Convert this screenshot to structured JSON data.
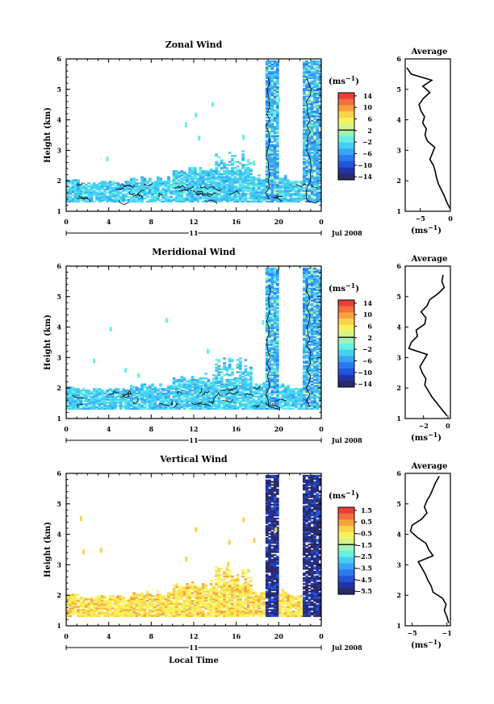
{
  "colors": {
    "ink": "#000000",
    "zm_scale": [
      "#2a2a66",
      "#2233aa",
      "#2255dd",
      "#2b79f0",
      "#3aa3f6",
      "#45d0f2",
      "#66f0e4",
      "#9ef3b2",
      "#d6f38a",
      "#f7f25c",
      "#fbd24a",
      "#f7a33c",
      "#f3703a",
      "#ea3f37"
    ],
    "vert_scale": [
      "#2a2a66",
      "#2233aa",
      "#2255dd",
      "#2b79f0",
      "#3aa3f6",
      "#45d0f2",
      "#66f0e4",
      "#9ef3b2",
      "#d6f38a",
      "#f7f25c",
      "#fbd24a",
      "#f7a33c",
      "#f3703a",
      "#ea3f37"
    ]
  },
  "chart_data": [
    {
      "type": "heatmap",
      "title": "Zonal Wind",
      "ylabel": "Height (km)",
      "xticks": [
        "0",
        "4",
        "8",
        "12",
        "16",
        "20",
        "0"
      ],
      "yticks": [
        "1",
        "2",
        "3",
        "4",
        "5",
        "6"
      ],
      "date_day": "11",
      "date_label": "Jul 2008",
      "colorbar": {
        "unit": "(ms",
        "exp": "−1",
        "ticks": [
          "14",
          "10",
          "6",
          "2",
          "−2",
          "−6",
          "−10",
          "−14"
        ],
        "range": [
          -16,
          16
        ]
      },
      "profile": {
        "title": "Average",
        "xticks": [
          "−5",
          "0"
        ],
        "xlim": [
          -7.5,
          0
        ],
        "unit": "(ms",
        "exp": "−1",
        "heights": [
          1.1,
          1.3,
          1.5,
          1.7,
          1.9,
          2.1,
          2.3,
          2.5,
          2.7,
          2.9,
          3.1,
          3.3,
          3.5,
          3.7,
          3.9,
          4.1,
          4.3,
          4.5,
          4.7,
          4.9,
          5.1,
          5.3,
          5.5,
          5.7
        ],
        "values": [
          -0.1,
          -0.6,
          -1.0,
          -1.5,
          -2.0,
          -2.3,
          -2.5,
          -2.8,
          -3.4,
          -3.0,
          -2.6,
          -3.8,
          -4.2,
          -4.0,
          -4.6,
          -4.3,
          -4.9,
          -5.2,
          -4.5,
          -3.4,
          -4.6,
          -3.1,
          -6.5,
          -7.2
        ]
      }
    },
    {
      "type": "heatmap",
      "title": "Meridional Wind",
      "ylabel": "Height (km)",
      "xticks": [
        "0",
        "4",
        "8",
        "12",
        "16",
        "20",
        "0"
      ],
      "yticks": [
        "1",
        "2",
        "3",
        "4",
        "5",
        "6"
      ],
      "date_day": "11",
      "date_label": "Jul 2008",
      "colorbar": {
        "unit": "(ms",
        "exp": "−1",
        "ticks": [
          "14",
          "10",
          "6",
          "2",
          "−2",
          "−6",
          "−10",
          "−14"
        ],
        "range": [
          -16,
          16
        ]
      },
      "profile": {
        "title": "Average",
        "xticks": [
          "−2",
          "0"
        ],
        "xlim": [
          -3.5,
          0.2
        ],
        "unit": "(ms",
        "exp": "−1",
        "heights": [
          1.1,
          1.3,
          1.5,
          1.7,
          1.9,
          2.1,
          2.3,
          2.5,
          2.7,
          2.9,
          3.1,
          3.3,
          3.5,
          3.7,
          3.9,
          4.1,
          4.3,
          4.5,
          4.7,
          4.9,
          5.1,
          5.3,
          5.5,
          5.7
        ],
        "values": [
          -0.1,
          -0.5,
          -0.9,
          -1.3,
          -1.6,
          -1.9,
          -1.8,
          -2.1,
          -2.3,
          -2.0,
          -1.7,
          -3.2,
          -3.0,
          -2.5,
          -2.6,
          -1.9,
          -1.8,
          -2.2,
          -1.7,
          -1.5,
          -0.8,
          -0.3,
          -0.5,
          -0.4
        ]
      }
    },
    {
      "type": "heatmap",
      "title": "Vertical Wind",
      "ylabel": "Height (km)",
      "xlabel": "Local Time",
      "xticks": [
        "0",
        "4",
        "8",
        "12",
        "16",
        "20",
        "0"
      ],
      "yticks": [
        "1",
        "2",
        "3",
        "4",
        "5",
        "6"
      ],
      "date_day": "11",
      "date_label": "Jul 2008",
      "colorbar": {
        "unit": "(ms",
        "exp": "−1",
        "ticks": [
          "1.5",
          "0.5",
          "−0.5",
          "−1.5",
          "−2.5",
          "−3.5",
          "−4.5",
          "−5.5"
        ],
        "range": [
          -6,
          2
        ]
      },
      "profile": {
        "title": "Average",
        "xticks": [
          "−5",
          "−1"
        ],
        "xlim": [
          -5.8,
          -0.6
        ],
        "unit": "(ms",
        "exp": "−1",
        "heights": [
          1.1,
          1.3,
          1.5,
          1.7,
          1.9,
          2.1,
          2.3,
          2.5,
          2.7,
          2.9,
          3.1,
          3.3,
          3.5,
          3.7,
          3.9,
          4.1,
          4.3,
          4.5,
          4.7,
          4.9,
          5.1,
          5.3,
          5.5,
          5.7,
          5.9
        ],
        "values": [
          -0.8,
          -1.0,
          -1.3,
          -1.1,
          -1.5,
          -2.6,
          -2.8,
          -3.2,
          -3.5,
          -3.9,
          -4.3,
          -2.6,
          -3.1,
          -3.4,
          -4.4,
          -5.2,
          -5.0,
          -3.9,
          -3.3,
          -3.6,
          -3.3,
          -2.9,
          -2.6,
          -2.3,
          -1.9
        ]
      }
    }
  ]
}
